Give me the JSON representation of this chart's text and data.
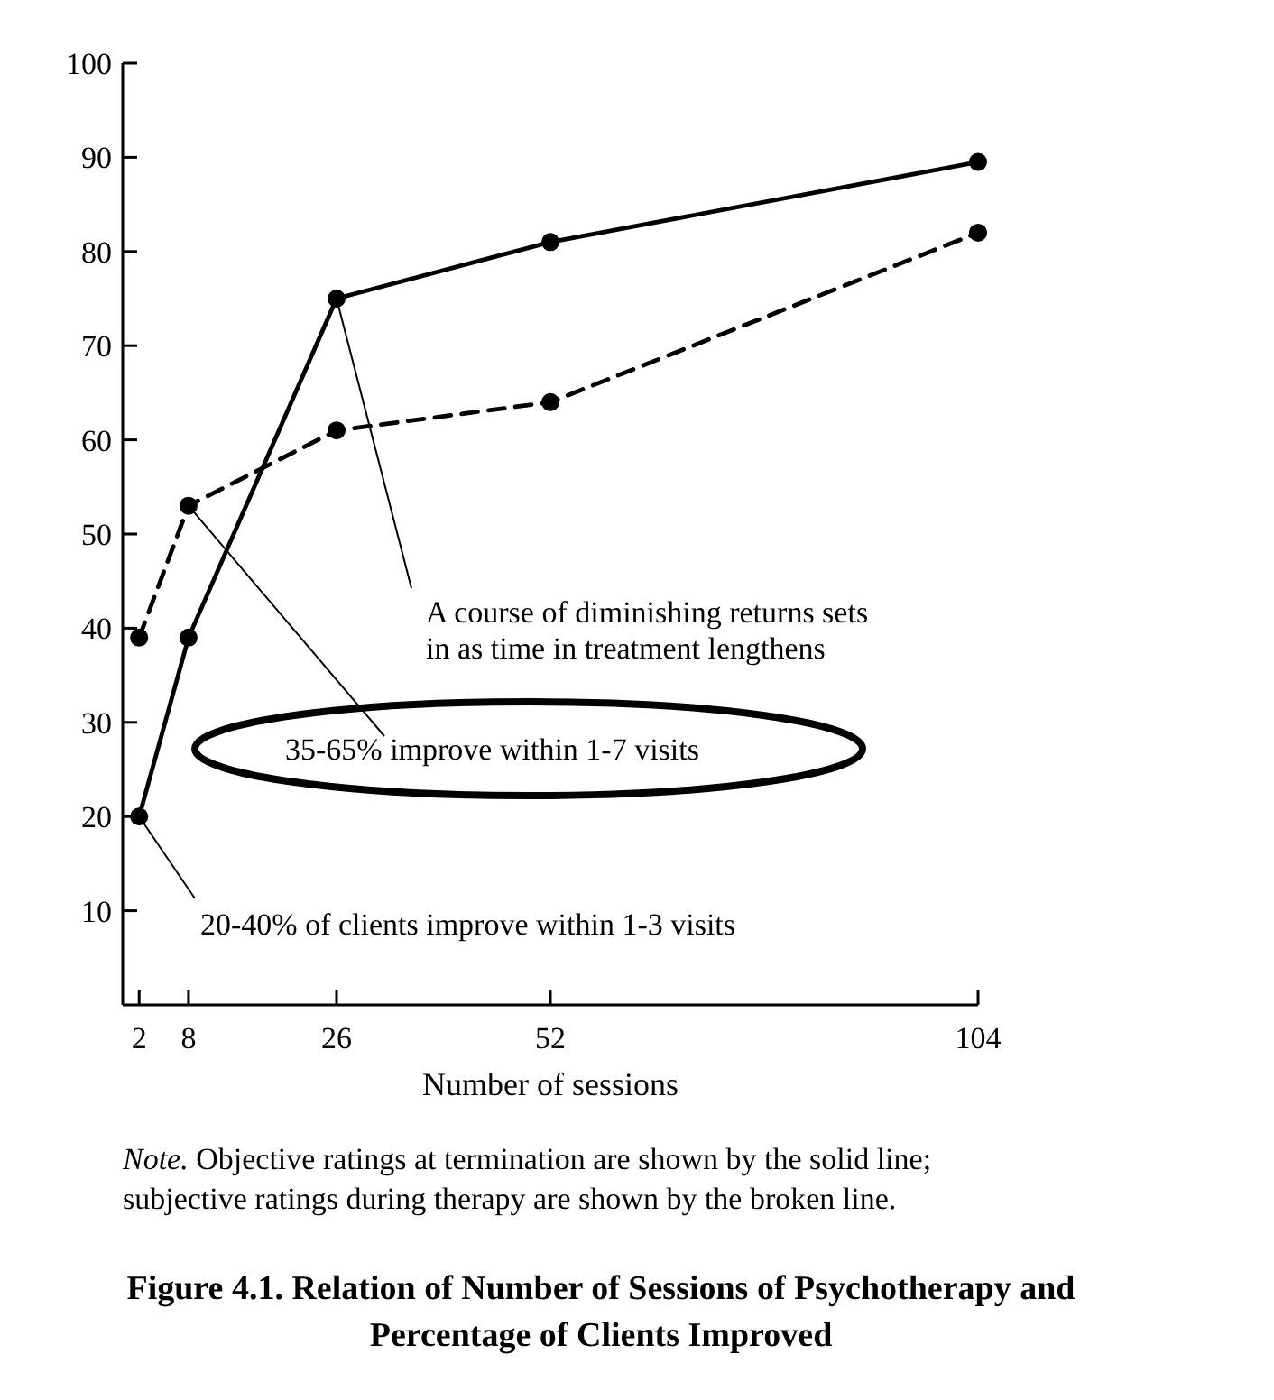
{
  "chart_data": {
    "type": "line",
    "title": "Figure 4.1. Relation of Number of Sessions of Psychotherapy and Percentage of Clients Improved",
    "xlabel": "Number of sessions",
    "x": [
      2,
      8,
      26,
      52,
      104
    ],
    "series": [
      {
        "color": "#000000",
        "line_style": "solid",
        "values": [
          20,
          39,
          75,
          81,
          89.5
        ]
      },
      {
        "color": "#000000",
        "line_style": "dashed",
        "values": [
          39,
          53,
          61,
          64,
          82
        ]
      }
    ],
    "xlim": [
      0,
      104
    ],
    "xticks": [
      2,
      8,
      26,
      52,
      104
    ],
    "ylim": [
      0,
      100
    ],
    "yticks": [
      10,
      20,
      30,
      40,
      50,
      60,
      70,
      80,
      90,
      100
    ],
    "grid": false,
    "marker": "circle",
    "annotations": [
      {
        "text": "A course of diminishing returns sets in as time in treatment lengthens",
        "x": 26,
        "y": 75
      },
      {
        "text": "35-65% improve within 1-7 visits",
        "x": 8,
        "y": 53
      },
      {
        "text": "20-40% of clients improve within 1-3 visits",
        "x": 2,
        "y": 20
      },
      "Note. Objective ratings at termination are shown by the solid line; subjective ratings during therapy are shown by the broken line."
    ]
  }
}
